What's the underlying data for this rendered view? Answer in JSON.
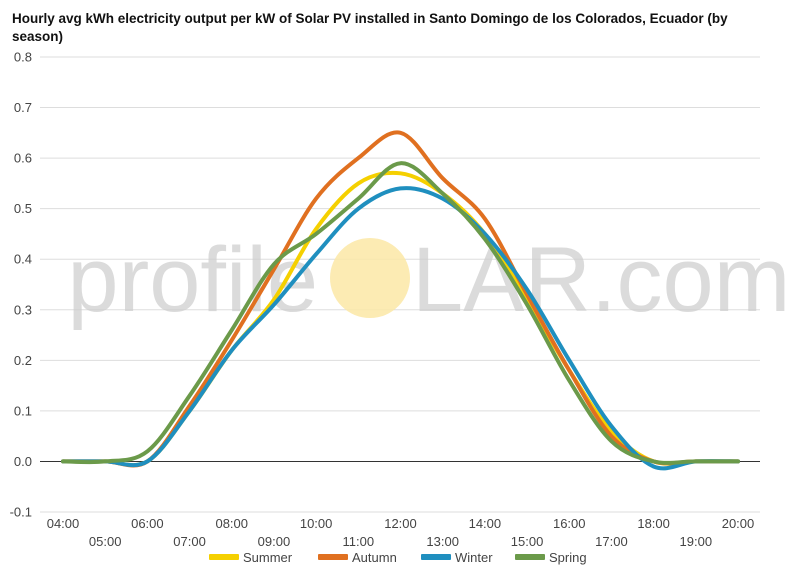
{
  "chart_data": {
    "type": "line",
    "title": "Hourly avg kWh electricity output per kW of Solar PV installed in Santo Domingo de los Colorados, Ecuador (by season)",
    "xlabel": "",
    "ylabel": "",
    "ylim": [
      -0.1,
      0.8
    ],
    "yticks": [
      "-0.1",
      "0.0",
      "0.1",
      "0.2",
      "0.3",
      "0.4",
      "0.5",
      "0.6",
      "0.7",
      "0.8"
    ],
    "x": [
      "04:00",
      "05:00",
      "06:00",
      "07:00",
      "08:00",
      "09:00",
      "10:00",
      "11:00",
      "12:00",
      "13:00",
      "14:00",
      "15:00",
      "16:00",
      "17:00",
      "18:00",
      "19:00",
      "20:00"
    ],
    "grid": true,
    "legend_position": "bottom",
    "series": [
      {
        "name": "Summer",
        "color": "#f5d000",
        "values": [
          0.0,
          0.0,
          0.0,
          0.1,
          0.22,
          0.32,
          0.46,
          0.55,
          0.57,
          0.53,
          0.45,
          0.32,
          0.18,
          0.06,
          0.0,
          0.0,
          0.0
        ]
      },
      {
        "name": "Autumn",
        "color": "#e07020",
        "values": [
          0.0,
          0.0,
          0.0,
          0.11,
          0.24,
          0.38,
          0.52,
          0.6,
          0.65,
          0.56,
          0.48,
          0.33,
          0.18,
          0.05,
          0.0,
          0.0,
          0.0
        ]
      },
      {
        "name": "Winter",
        "color": "#1f8fbf",
        "values": [
          0.0,
          0.0,
          0.0,
          0.1,
          0.22,
          0.31,
          0.41,
          0.5,
          0.54,
          0.52,
          0.45,
          0.34,
          0.2,
          0.07,
          -0.01,
          0.0,
          0.0
        ]
      },
      {
        "name": "Spring",
        "color": "#6b9a4a",
        "values": [
          0.0,
          0.0,
          0.02,
          0.13,
          0.26,
          0.39,
          0.45,
          0.52,
          0.59,
          0.53,
          0.44,
          0.31,
          0.16,
          0.04,
          0.0,
          0.0,
          0.0
        ]
      }
    ]
  },
  "watermark": {
    "left": "profile",
    "right": "LAR.com",
    "sun_color": "#fbe8a6"
  }
}
